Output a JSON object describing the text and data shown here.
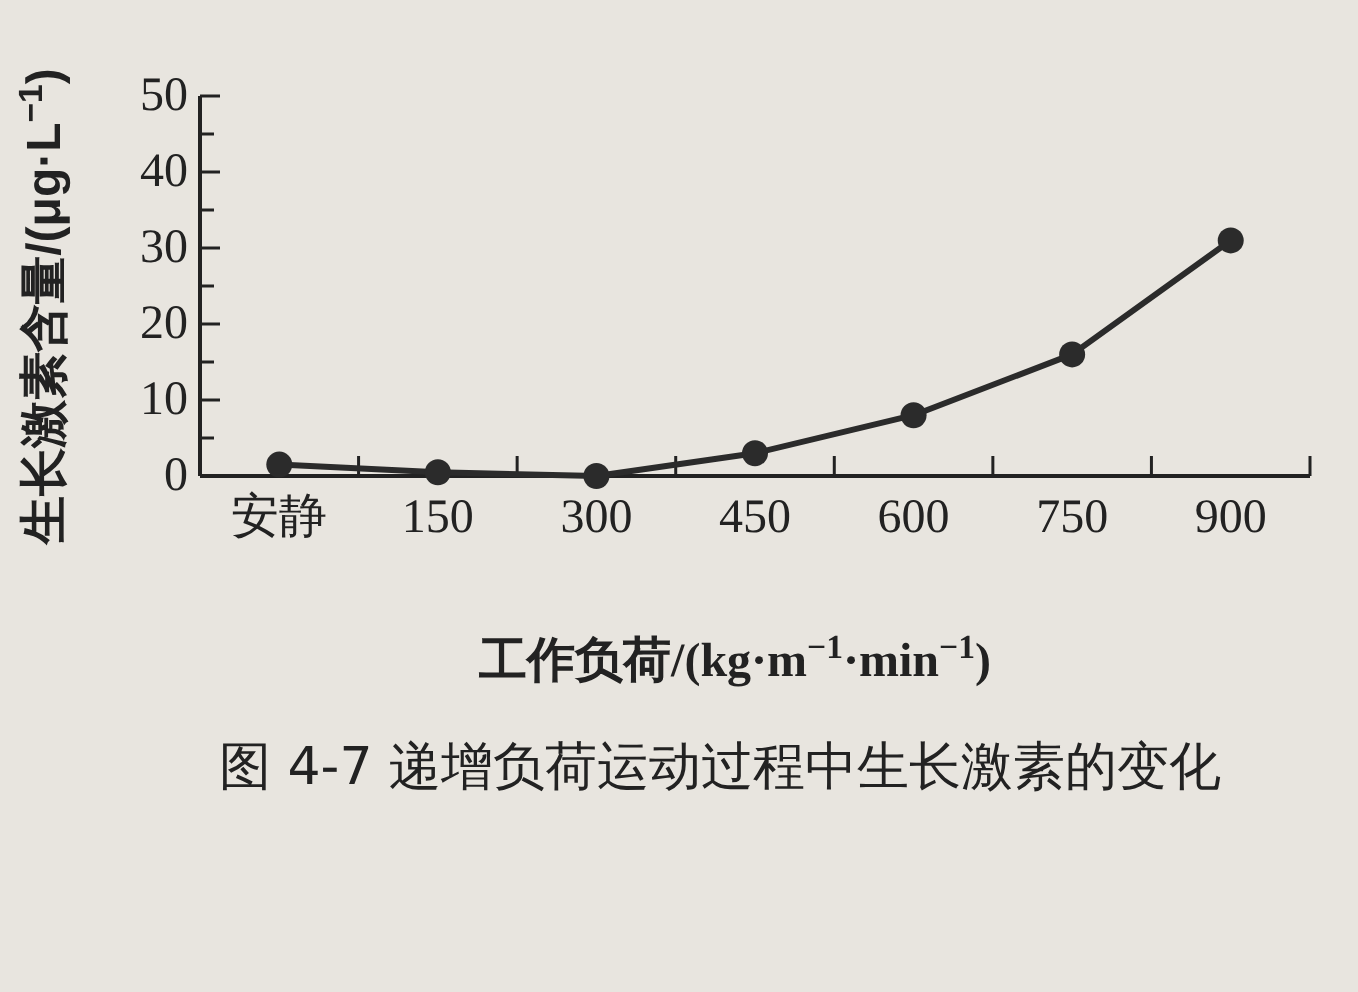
{
  "chart_data": {
    "type": "line",
    "title": "图 4-7  递增负荷运动过程中生长激素的变化",
    "xlabel": "工作负荷/(kg·m$^{−1}$·min$^{−1}$)",
    "ylabel": "生长激素含量/(μg·L$^{−1}$)",
    "categories": [
      "安静",
      "150",
      "300",
      "450",
      "600",
      "750",
      "900"
    ],
    "series": [
      {
        "color": "#2b2b2b",
        "values": [
          1.5,
          0.5,
          0,
          3,
          8,
          16,
          31
        ]
      }
    ],
    "ylim": [
      0,
      50
    ],
    "yticks": [
      0,
      {
        "value": 5,
        "label": null
      },
      10,
      {
        "value": 15,
        "label": null
      },
      20,
      {
        "value": 25,
        "label": null
      },
      30,
      {
        "value": 35,
        "label": null
      },
      40,
      {
        "value": 45,
        "label": null
      },
      50
    ],
    "marker": "circle",
    "line_style": "solid",
    "grid": false
  }
}
